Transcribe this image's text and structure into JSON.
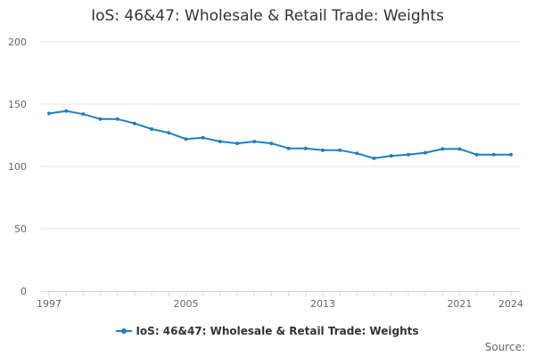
{
  "colors": {
    "series": "#1f7fc0",
    "grid": "#e6e6e6",
    "axis": "#ccd6eb"
  },
  "source_label": "Source:",
  "chart_data": {
    "type": "line",
    "title": "IoS: 46&47: Wholesale & Retail Trade: Weights",
    "xlabel": "",
    "ylabel": "",
    "ylim": [
      0,
      200
    ],
    "yticks": [
      0,
      50,
      100,
      150,
      200
    ],
    "xticks": [
      1997,
      2005,
      2013,
      2021,
      2024
    ],
    "x": [
      1997,
      1998,
      1999,
      2000,
      2001,
      2002,
      2003,
      2004,
      2005,
      2006,
      2007,
      2008,
      2009,
      2010,
      2011,
      2012,
      2013,
      2014,
      2015,
      2016,
      2017,
      2018,
      2019,
      2020,
      2021,
      2022,
      2023,
      2024
    ],
    "series": [
      {
        "name": "IoS: 46&47: Wholesale & Retail Trade: Weights",
        "values": [
          142.5,
          144.5,
          142,
          138,
          138,
          134.5,
          130,
          127,
          122,
          123,
          120,
          118.5,
          120,
          118.5,
          114.5,
          114.5,
          113,
          113,
          110.5,
          106.5,
          108.5,
          109.5,
          111,
          114,
          114,
          109.5,
          109.5,
          109.5
        ]
      }
    ],
    "grid": true,
    "legend": "bottom-center"
  }
}
